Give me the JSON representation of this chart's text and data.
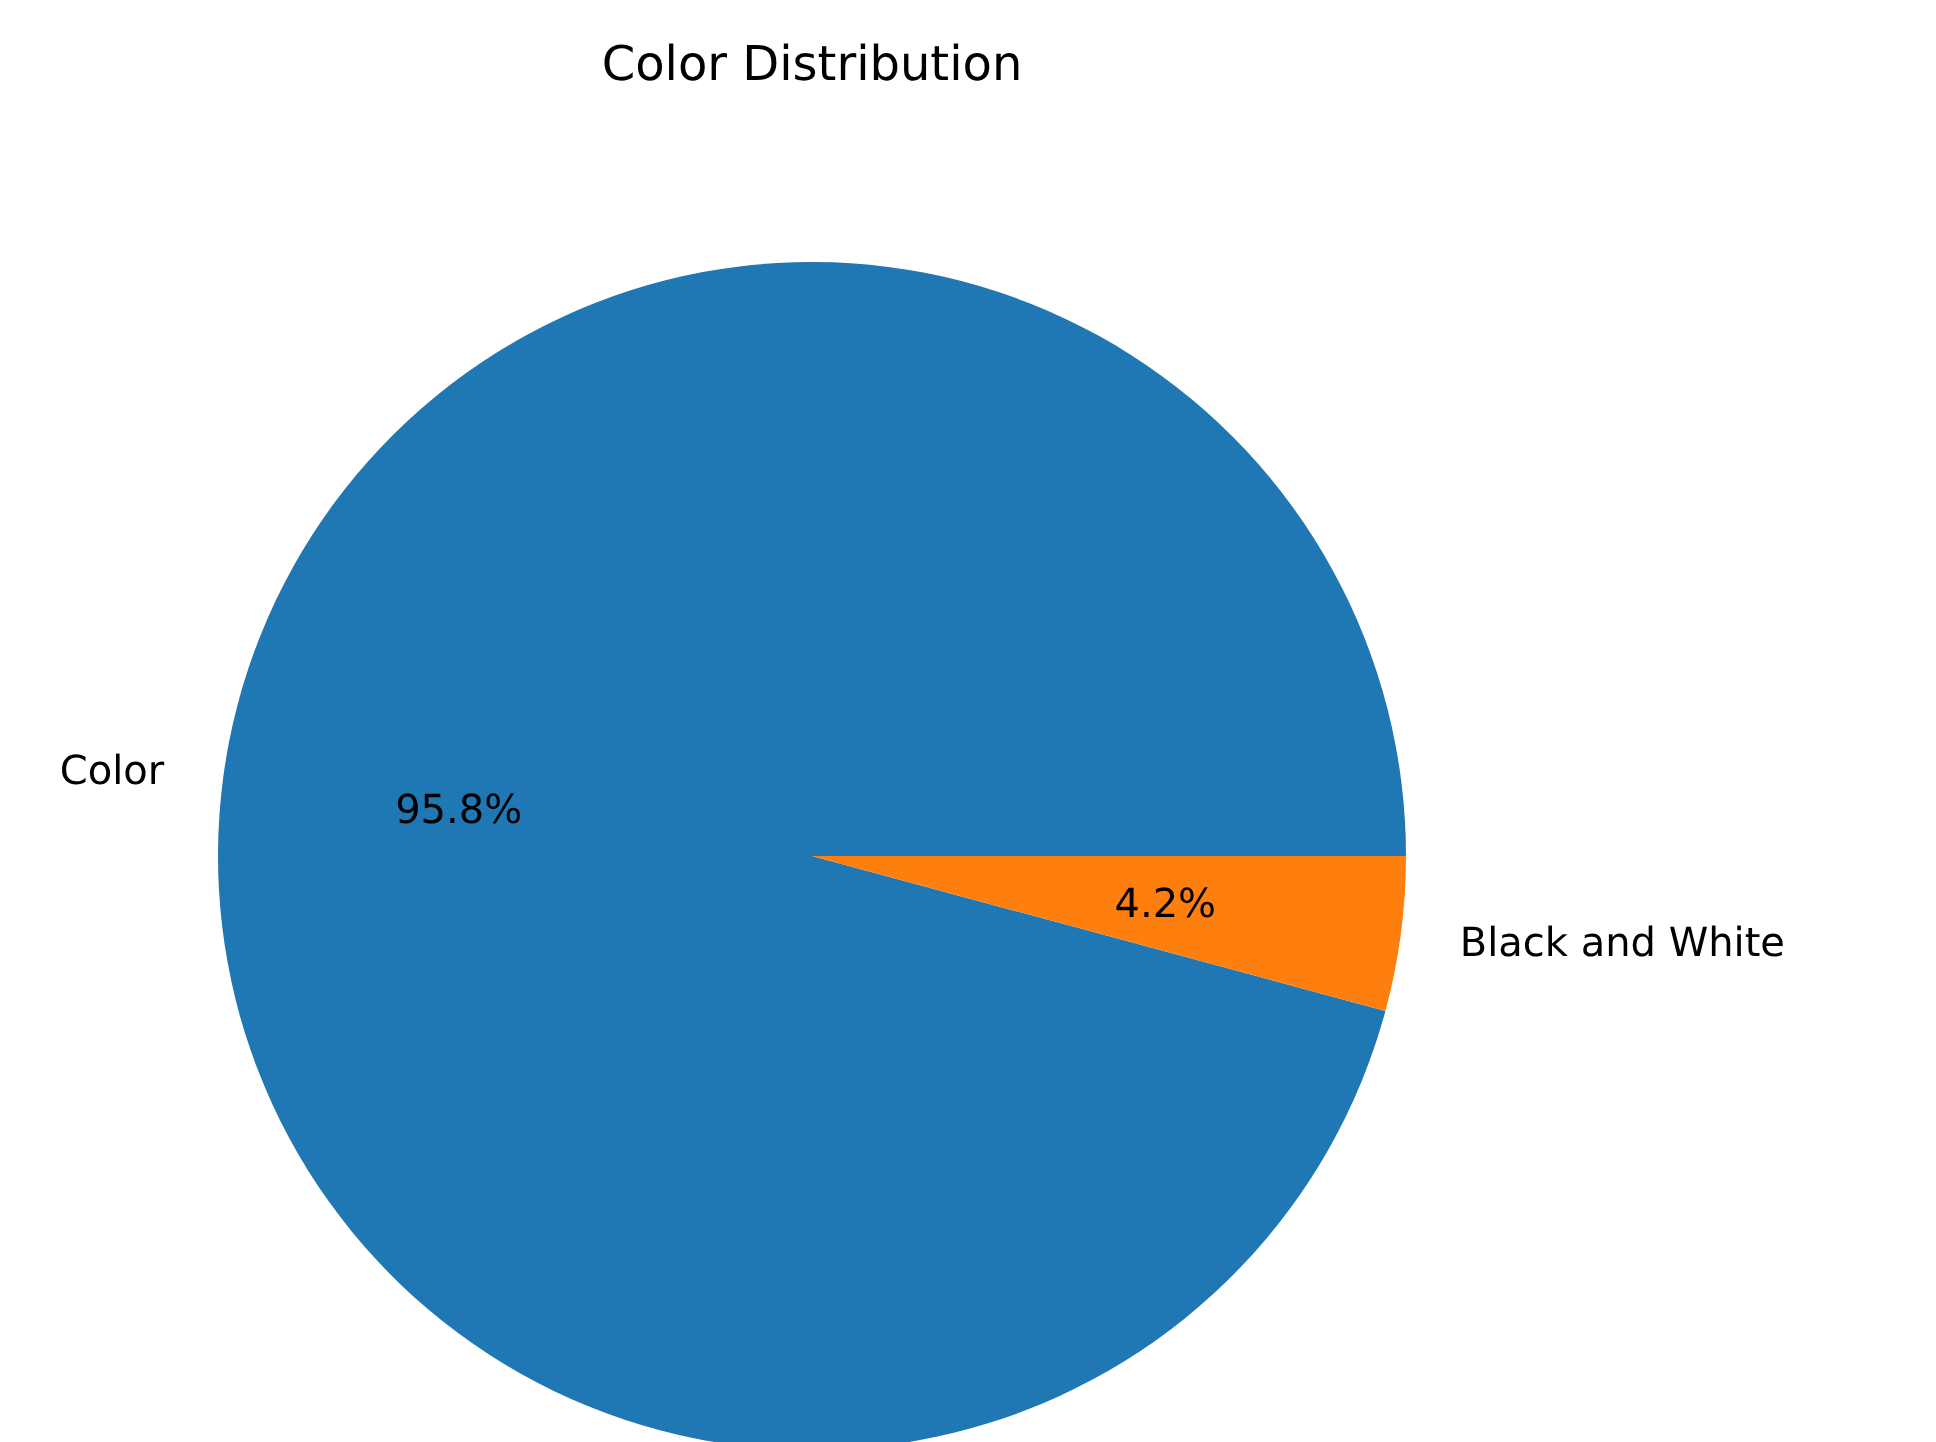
{
  "chart_data": {
    "type": "pie",
    "title": "Color Distribution",
    "categories": [
      "Color",
      "Black and White"
    ],
    "values": [
      95.8,
      4.2
    ],
    "colors": [
      "#1f77b4",
      "#ff7f0e"
    ],
    "value_labels": [
      "95.8%",
      "4.2%"
    ]
  }
}
